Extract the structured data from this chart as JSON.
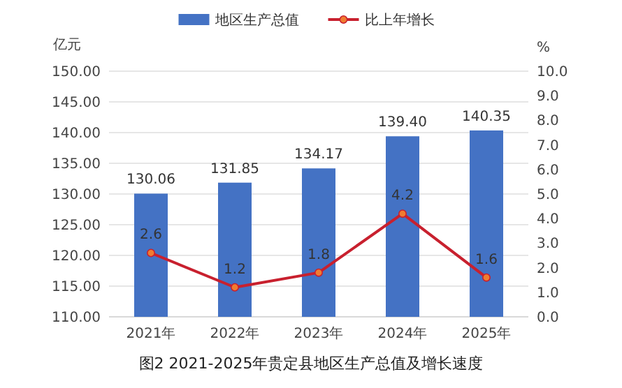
{
  "chart_data": {
    "type": "bar",
    "title": "图2 2021-2025年贵定县地区生产总值及增长速度",
    "ylabel": "亿元",
    "y2label": "%",
    "categories": [
      "2021年",
      "2022年",
      "2023年",
      "2024年",
      "2025年"
    ],
    "series": [
      {
        "name": "地区生产总值",
        "color": "#4472c4",
        "values": [
          130.06,
          131.85,
          134.17,
          139.4,
          140.35
        ],
        "value_labels": [
          "130.06",
          "131.85",
          "134.17",
          "139.40",
          "140.35"
        ]
      },
      {
        "name": "比上年增长",
        "type": "line",
        "axis": "y2",
        "color": "#c8202e",
        "values": [
          2.6,
          1.2,
          1.8,
          4.2,
          1.6
        ],
        "value_labels": [
          "2.6",
          "1.2",
          "1.8",
          "4.2",
          "1.6"
        ]
      }
    ],
    "ylim": [
      110,
      150
    ],
    "yticks": [
      {
        "value": 110,
        "label": "110.00"
      },
      {
        "value": 115,
        "label": "115.00"
      },
      {
        "value": 120,
        "label": "120.00"
      },
      {
        "value": 125,
        "label": "125.00"
      },
      {
        "value": 130,
        "label": "130.00"
      },
      {
        "value": 135,
        "label": "135.00"
      },
      {
        "value": 140,
        "label": "140.00"
      },
      {
        "value": 145,
        "label": "145.00"
      },
      {
        "value": 150,
        "label": "150.00"
      }
    ],
    "y2lim": [
      0,
      10
    ],
    "y2ticks": [
      {
        "value": 0,
        "label": "0.0"
      },
      {
        "value": 1,
        "label": "1.0"
      },
      {
        "value": 2,
        "label": "2.0"
      },
      {
        "value": 3,
        "label": "3.0"
      },
      {
        "value": 4,
        "label": "4.0"
      },
      {
        "value": 5,
        "label": "5.0"
      },
      {
        "value": 6,
        "label": "6.0"
      },
      {
        "value": 7,
        "label": "7.0"
      },
      {
        "value": 8,
        "label": "8.0"
      },
      {
        "value": 9,
        "label": "9.0"
      },
      {
        "value": 10,
        "label": "10.0"
      }
    ],
    "grid": "y",
    "legend": "top",
    "marker": "circle"
  }
}
